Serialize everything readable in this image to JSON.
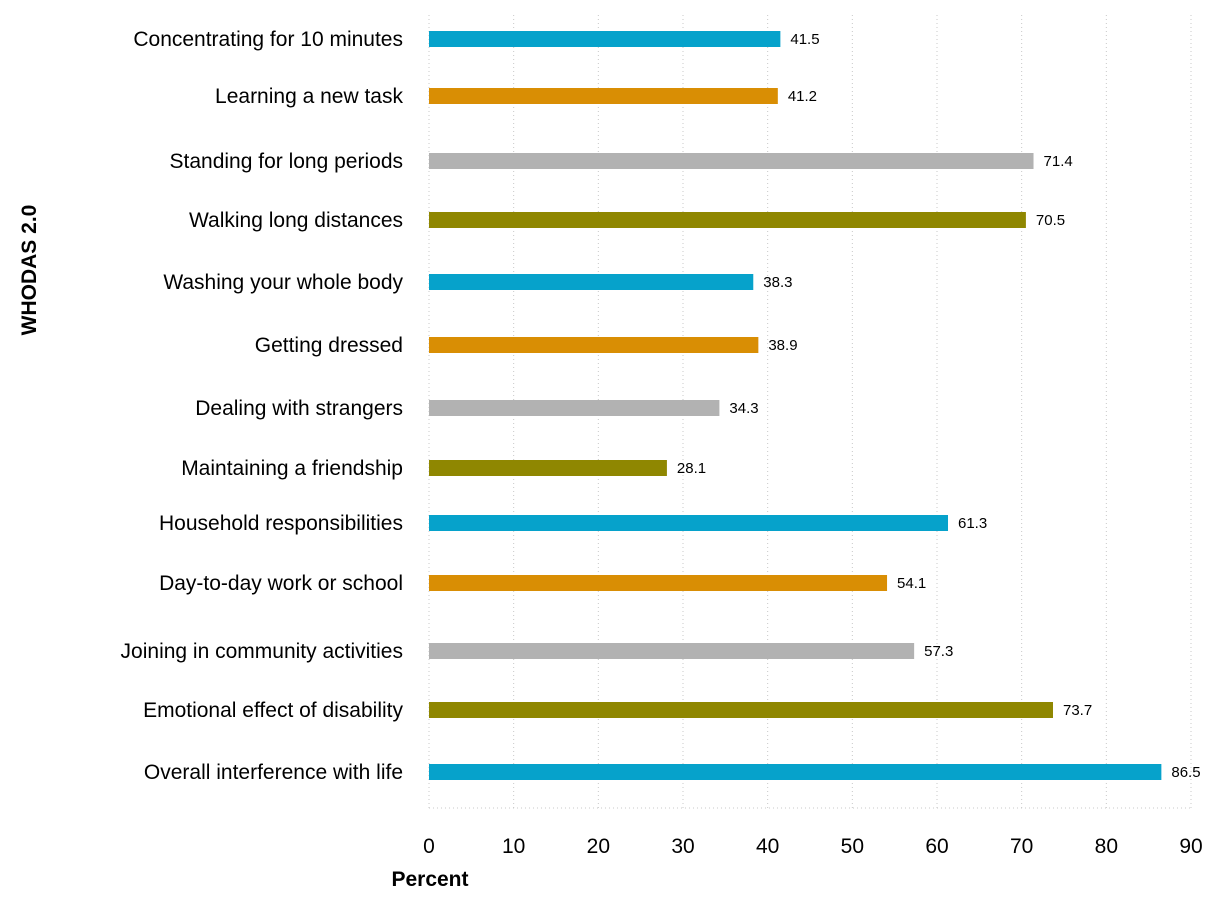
{
  "chart_data": {
    "type": "bar",
    "orientation": "horizontal",
    "categories": [
      "Concentrating for 10 minutes",
      "Learning a new task",
      "Standing for long periods",
      "Walking long distances",
      "Washing your whole body",
      "Getting dressed",
      "Dealing with strangers",
      "Maintaining a friendship",
      "Household responsibilities",
      "Day-to-day work or school",
      "Joining in community activities",
      "Emotional effect of disability",
      "Overall interference with life"
    ],
    "values": [
      41.5,
      41.2,
      71.4,
      70.5,
      38.3,
      38.9,
      34.3,
      28.1,
      61.3,
      54.1,
      57.3,
      73.7,
      86.5
    ],
    "value_labels": [
      "41.5",
      "41.2",
      "71.4",
      "70.5",
      "38.3",
      "38.9",
      "34.3",
      "28.1",
      "61.3",
      "54.1",
      "57.3",
      "73.7",
      "86.5"
    ],
    "colors": [
      "#06a2cb",
      "#d98e04",
      "#b2b2b2",
      "#8f8701",
      "#06a2cb",
      "#d98e04",
      "#b2b2b2",
      "#8f8701",
      "#06a2cb",
      "#d98e04",
      "#b2b2b2",
      "#8f8701",
      "#06a2cb"
    ],
    "xlim": [
      0,
      90
    ],
    "xticks": [
      "0",
      "10",
      "20",
      "30",
      "40",
      "50",
      "60",
      "70",
      "80",
      "90"
    ],
    "xlabel": "Percent",
    "ylabel": "WHODAS 2.0",
    "grid": "vertical dotted",
    "legend": "none"
  }
}
